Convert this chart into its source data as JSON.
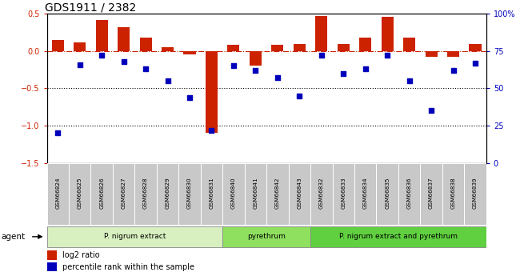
{
  "title": "GDS1911 / 2382",
  "samples": [
    "GSM66824",
    "GSM66825",
    "GSM66826",
    "GSM66827",
    "GSM66828",
    "GSM66829",
    "GSM66830",
    "GSM66831",
    "GSM66840",
    "GSM66841",
    "GSM66842",
    "GSM66843",
    "GSM66832",
    "GSM66833",
    "GSM66834",
    "GSM66835",
    "GSM66836",
    "GSM66837",
    "GSM66838",
    "GSM66839"
  ],
  "log2_ratio": [
    0.15,
    0.12,
    0.42,
    0.32,
    0.18,
    0.05,
    -0.05,
    -1.1,
    0.08,
    -0.2,
    0.08,
    0.1,
    0.47,
    0.1,
    0.18,
    0.46,
    0.18,
    -0.08,
    -0.08,
    0.1
  ],
  "percentile_rank": [
    20,
    66,
    72,
    68,
    63,
    55,
    44,
    22,
    65,
    62,
    57,
    45,
    72,
    60,
    63,
    72,
    55,
    35,
    62,
    67
  ],
  "groups": [
    {
      "label": "P. nigrum extract",
      "start": 0,
      "end": 8,
      "color": "#d8f0c0"
    },
    {
      "label": "pyrethrum",
      "start": 8,
      "end": 12,
      "color": "#90e060"
    },
    {
      "label": "P. nigrum extract and pyrethrum",
      "start": 12,
      "end": 20,
      "color": "#60d040"
    }
  ],
  "bar_color": "#cc2200",
  "dot_color": "#0000bb",
  "ylim_left": [
    -1.5,
    0.5
  ],
  "ylim_right": [
    0,
    100
  ],
  "yticks_left": [
    0.5,
    0.0,
    -0.5,
    -1.0,
    -1.5
  ],
  "yticks_right": [
    100,
    75,
    50,
    25,
    0
  ],
  "ytick_labels_right": [
    "100%",
    "75",
    "50",
    "25",
    "0"
  ],
  "hline_y": [
    0.0,
    -0.5,
    -1.0
  ],
  "background_color": "#ffffff",
  "agent_label": "agent",
  "legend_bar_label": "log2 ratio",
  "legend_dot_label": "percentile rank within the sample",
  "sample_box_color": "#c8c8c8",
  "title_fontsize": 10,
  "tick_fontsize": 7,
  "bar_width": 0.55
}
